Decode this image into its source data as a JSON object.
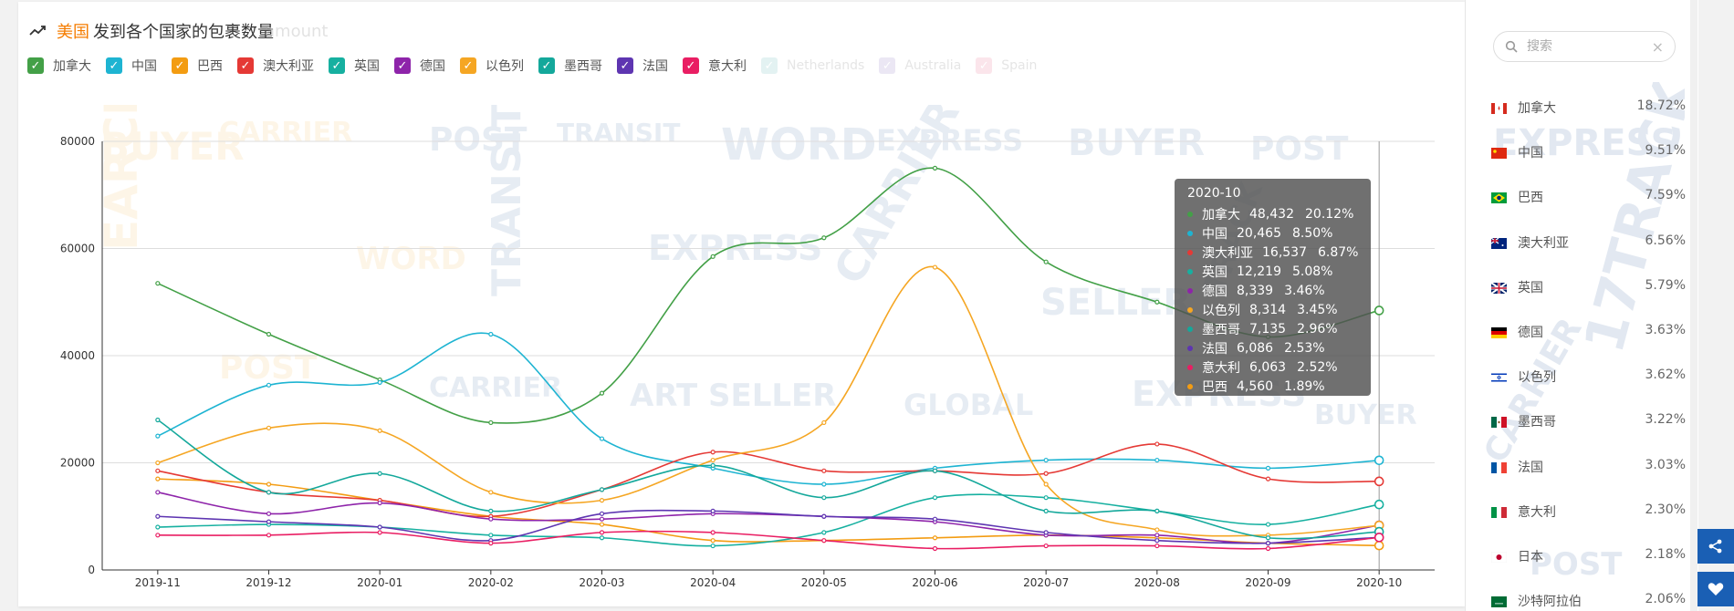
{
  "header": {
    "country": "美国",
    "title": "发到各个国家的包裹数量",
    "ghost": "amount"
  },
  "legend": [
    {
      "name": "加拿大",
      "color": "#43a047",
      "on": true
    },
    {
      "name": "中国",
      "color": "#1eb4d2",
      "on": true
    },
    {
      "name": "巴西",
      "color": "#f39c12",
      "on": true
    },
    {
      "name": "澳大利亚",
      "color": "#e53935",
      "on": true
    },
    {
      "name": "英国",
      "color": "#16b0a0",
      "on": true
    },
    {
      "name": "德国",
      "color": "#8e24aa",
      "on": true
    },
    {
      "name": "以色列",
      "color": "#f5a623",
      "on": true
    },
    {
      "name": "墨西哥",
      "color": "#14a89b",
      "on": true
    },
    {
      "name": "法国",
      "color": "#5e35b1",
      "on": true
    },
    {
      "name": "意大利",
      "color": "#e91e63",
      "on": true
    },
    {
      "name": "Netherlands",
      "color": "#c8e6e6",
      "on": false
    },
    {
      "name": "Australia",
      "color": "#d8d0ea",
      "on": false
    },
    {
      "name": "Spain",
      "color": "#f8cdd8",
      "on": false
    }
  ],
  "chart_data": {
    "type": "line",
    "x": [
      "2019-11",
      "2019-12",
      "2020-01",
      "2020-02",
      "2020-03",
      "2020-04",
      "2020-05",
      "2020-06",
      "2020-07",
      "2020-08",
      "2020-09",
      "2020-10"
    ],
    "ylim": [
      0,
      80000
    ],
    "yticks": [
      0,
      20000,
      40000,
      60000,
      80000
    ],
    "series": [
      {
        "name": "加拿大",
        "color": "#43a047",
        "values": [
          53500,
          44000,
          35500,
          27500,
          33000,
          58500,
          62000,
          75000,
          57500,
          50000,
          43500,
          48432
        ]
      },
      {
        "name": "中国",
        "color": "#1eb4d2",
        "values": [
          25000,
          34500,
          35000,
          44000,
          24500,
          19000,
          16000,
          19000,
          20500,
          20500,
          19000,
          20465
        ]
      },
      {
        "name": "巴西",
        "color": "#f39c12",
        "values": [
          17000,
          16000,
          13000,
          10000,
          8500,
          5500,
          5500,
          6000,
          6500,
          6000,
          5000,
          4560
        ]
      },
      {
        "name": "澳大利亚",
        "color": "#e53935",
        "values": [
          18500,
          14500,
          13000,
          10000,
          15000,
          22000,
          18500,
          18500,
          18000,
          23500,
          17000,
          16537
        ]
      },
      {
        "name": "英国",
        "color": "#16b0a0",
        "values": [
          8000,
          8500,
          8000,
          6500,
          6000,
          4500,
          7000,
          13500,
          13500,
          11000,
          8500,
          12219
        ]
      },
      {
        "name": "德国",
        "color": "#8e24aa",
        "values": [
          14500,
          10500,
          12500,
          9500,
          9500,
          10500,
          10000,
          9000,
          6500,
          6500,
          5000,
          8339
        ]
      },
      {
        "name": "以色列",
        "color": "#f5a623",
        "values": [
          20000,
          26500,
          26000,
          14500,
          13000,
          20500,
          27500,
          56500,
          16000,
          7500,
          6500,
          8314
        ]
      },
      {
        "name": "墨西哥",
        "color": "#14a89b",
        "values": [
          28000,
          14500,
          18000,
          11000,
          15000,
          19500,
          13500,
          18500,
          11000,
          11000,
          6000,
          7135
        ]
      },
      {
        "name": "法国",
        "color": "#5e35b1",
        "values": [
          10000,
          9000,
          8000,
          5500,
          10500,
          11000,
          10000,
          9500,
          7000,
          5500,
          5000,
          6086
        ]
      },
      {
        "name": "意大利",
        "color": "#e91e63",
        "values": [
          6500,
          6500,
          7000,
          5000,
          7000,
          7000,
          5500,
          4000,
          4500,
          4500,
          4000,
          6063
        ]
      }
    ]
  },
  "tooltip": {
    "date": "2020-10",
    "rows": [
      {
        "name": "加拿大",
        "value": "48,432",
        "pct": "20.12%",
        "color": "#43a047"
      },
      {
        "name": "中国",
        "value": "20,465",
        "pct": "8.50%",
        "color": "#1eb4d2"
      },
      {
        "name": "澳大利亚",
        "value": "16,537",
        "pct": "6.87%",
        "color": "#e53935"
      },
      {
        "name": "英国",
        "value": "12,219",
        "pct": "5.08%",
        "color": "#16b0a0"
      },
      {
        "name": "德国",
        "value": "8,339",
        "pct": "3.46%",
        "color": "#8e24aa"
      },
      {
        "name": "以色列",
        "value": "8,314",
        "pct": "3.45%",
        "color": "#f5a623"
      },
      {
        "name": "墨西哥",
        "value": "7,135",
        "pct": "2.96%",
        "color": "#14a89b"
      },
      {
        "name": "法国",
        "value": "6,086",
        "pct": "2.53%",
        "color": "#5e35b1"
      },
      {
        "name": "意大利",
        "value": "6,063",
        "pct": "2.52%",
        "color": "#e91e63"
      },
      {
        "name": "巴西",
        "value": "4,560",
        "pct": "1.89%",
        "color": "#f39c12"
      }
    ]
  },
  "sidebar": {
    "search_placeholder": "搜索",
    "ranking": [
      {
        "name": "加拿大",
        "pct": "18.72%",
        "flag": "canada-flag"
      },
      {
        "name": "中国",
        "pct": "9.51%",
        "flag": "china-flag"
      },
      {
        "name": "巴西",
        "pct": "7.59%",
        "flag": "brazil-flag"
      },
      {
        "name": "澳大利亚",
        "pct": "6.56%",
        "flag": "australia-flag"
      },
      {
        "name": "英国",
        "pct": "5.79%",
        "flag": "uk-flag"
      },
      {
        "name": "德国",
        "pct": "3.63%",
        "flag": "germany-flag"
      },
      {
        "name": "以色列",
        "pct": "3.62%",
        "flag": "israel-flag"
      },
      {
        "name": "墨西哥",
        "pct": "3.22%",
        "flag": "mexico-flag"
      },
      {
        "name": "法国",
        "pct": "3.03%",
        "flag": "france-flag"
      },
      {
        "name": "意大利",
        "pct": "2.30%",
        "flag": "italy-flag"
      },
      {
        "name": "日本",
        "pct": "2.18%",
        "flag": "japan-flag"
      },
      {
        "name": "沙特阿拉伯",
        "pct": "2.06%",
        "flag": "saudi-flag"
      }
    ]
  }
}
